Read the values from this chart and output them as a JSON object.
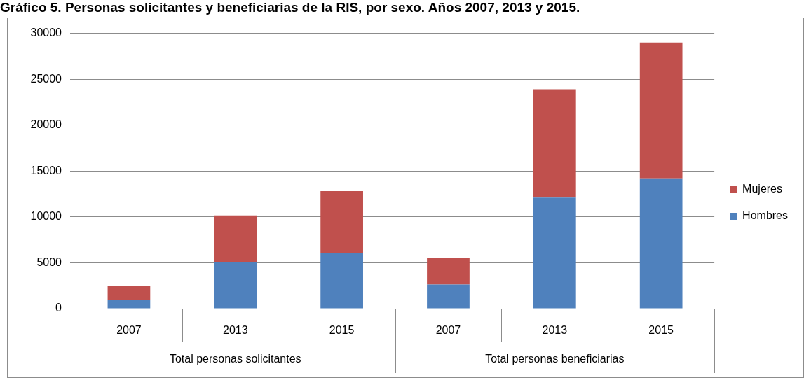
{
  "chart_data": {
    "type": "bar",
    "title": "Gráfico 5. Personas solicitantes y beneficiarias de la RIS, por sexo. Años 2007, 2013 y 2015.",
    "categories": [
      "2007",
      "2013",
      "2015",
      "2007",
      "2013",
      "2015"
    ],
    "series": [
      {
        "name": "Hombres",
        "color": "#4f81bd",
        "values": [
          980,
          5050,
          6040,
          2630,
          12100,
          14200
        ]
      },
      {
        "name": "Mujeres",
        "color": "#c0504d",
        "values": [
          1460,
          5110,
          6780,
          2900,
          11800,
          14800
        ]
      }
    ],
    "stacked": true,
    "ylim": [
      0,
      30000
    ],
    "yticks": [
      0,
      5000,
      10000,
      15000,
      20000,
      25000,
      30000
    ],
    "grid": "y",
    "legend": "right",
    "annotations": [
      "Total personas solicitantes",
      "Total personas beneficiarias"
    ]
  }
}
